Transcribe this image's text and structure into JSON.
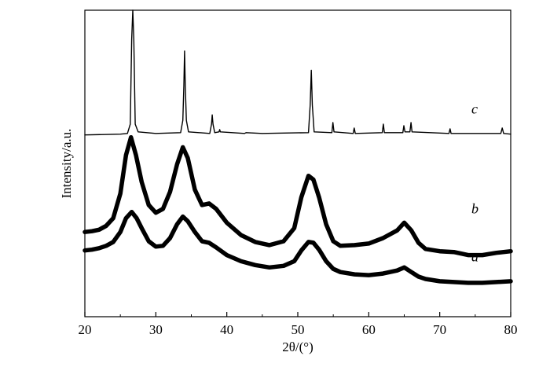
{
  "chart_data": {
    "type": "line",
    "title": "",
    "xlabel": "2θ/(°)",
    "ylabel": "Intensity/a.u.",
    "xlim": [
      20,
      80
    ],
    "xticks": [
      20,
      30,
      40,
      50,
      60,
      70,
      80
    ],
    "yticks_shown": false,
    "grid": false,
    "legend": "none",
    "series": [
      {
        "name": "a",
        "line_color": "#000000",
        "points": [
          [
            20,
            0.86
          ],
          [
            21,
            0.87
          ],
          [
            22,
            0.89
          ],
          [
            23,
            0.92
          ],
          [
            24,
            0.97
          ],
          [
            25,
            1.1
          ],
          [
            25.8,
            1.28
          ],
          [
            26.6,
            1.36
          ],
          [
            27.3,
            1.28
          ],
          [
            28,
            1.15
          ],
          [
            29,
            0.98
          ],
          [
            30,
            0.91
          ],
          [
            31,
            0.92
          ],
          [
            32,
            1.02
          ],
          [
            33,
            1.2
          ],
          [
            33.8,
            1.3
          ],
          [
            34.5,
            1.24
          ],
          [
            35.5,
            1.1
          ],
          [
            36.5,
            0.98
          ],
          [
            37.5,
            0.96
          ],
          [
            38.5,
            0.9
          ],
          [
            40,
            0.8
          ],
          [
            42,
            0.72
          ],
          [
            44,
            0.67
          ],
          [
            46,
            0.64
          ],
          [
            48,
            0.66
          ],
          [
            49.5,
            0.72
          ],
          [
            50.5,
            0.86
          ],
          [
            51.5,
            0.97
          ],
          [
            52.2,
            0.96
          ],
          [
            53,
            0.87
          ],
          [
            54,
            0.72
          ],
          [
            55,
            0.62
          ],
          [
            56,
            0.58
          ],
          [
            58,
            0.55
          ],
          [
            60,
            0.54
          ],
          [
            62,
            0.56
          ],
          [
            64,
            0.6
          ],
          [
            65,
            0.64
          ],
          [
            66,
            0.58
          ],
          [
            67,
            0.52
          ],
          [
            68,
            0.49
          ],
          [
            70,
            0.46
          ],
          [
            72,
            0.45
          ],
          [
            74,
            0.44
          ],
          [
            76,
            0.44
          ],
          [
            78,
            0.45
          ],
          [
            80,
            0.46
          ]
        ]
      },
      {
        "name": "b",
        "line_color": "#000000",
        "points": [
          [
            20,
            1.1
          ],
          [
            21,
            1.11
          ],
          [
            22,
            1.13
          ],
          [
            23,
            1.18
          ],
          [
            24,
            1.28
          ],
          [
            25,
            1.6
          ],
          [
            25.8,
            2.1
          ],
          [
            26.5,
            2.33
          ],
          [
            27.2,
            2.1
          ],
          [
            28,
            1.75
          ],
          [
            29,
            1.45
          ],
          [
            30,
            1.35
          ],
          [
            31,
            1.4
          ],
          [
            32,
            1.62
          ],
          [
            33,
            1.98
          ],
          [
            33.8,
            2.2
          ],
          [
            34.5,
            2.06
          ],
          [
            35.5,
            1.65
          ],
          [
            36.5,
            1.45
          ],
          [
            37.5,
            1.47
          ],
          [
            38.5,
            1.4
          ],
          [
            40,
            1.22
          ],
          [
            42,
            1.06
          ],
          [
            44,
            0.97
          ],
          [
            46,
            0.93
          ],
          [
            48,
            0.98
          ],
          [
            49.5,
            1.15
          ],
          [
            50.5,
            1.55
          ],
          [
            51.5,
            1.83
          ],
          [
            52.2,
            1.78
          ],
          [
            53,
            1.55
          ],
          [
            54,
            1.2
          ],
          [
            55,
            0.98
          ],
          [
            56,
            0.92
          ],
          [
            58,
            0.93
          ],
          [
            60,
            0.95
          ],
          [
            62,
            1.02
          ],
          [
            64,
            1.12
          ],
          [
            65,
            1.22
          ],
          [
            66,
            1.12
          ],
          [
            67,
            0.96
          ],
          [
            68,
            0.88
          ],
          [
            70,
            0.85
          ],
          [
            72,
            0.84
          ],
          [
            74,
            0.8
          ],
          [
            76,
            0.8
          ],
          [
            78,
            0.83
          ],
          [
            80,
            0.85
          ]
        ]
      },
      {
        "name": "c",
        "line_color": "#000000",
        "points": [
          [
            20,
            2.36
          ],
          [
            25,
            2.37
          ],
          [
            26.0,
            2.38
          ],
          [
            26.4,
            2.5
          ],
          [
            26.6,
            3.6
          ],
          [
            26.75,
            3.98
          ],
          [
            26.9,
            3.6
          ],
          [
            27.1,
            2.5
          ],
          [
            27.5,
            2.4
          ],
          [
            30,
            2.38
          ],
          [
            33.5,
            2.39
          ],
          [
            33.8,
            2.55
          ],
          [
            33.95,
            3.0
          ],
          [
            34.05,
            3.45
          ],
          [
            34.15,
            3.0
          ],
          [
            34.3,
            2.55
          ],
          [
            34.6,
            2.4
          ],
          [
            37.6,
            2.38
          ],
          [
            37.85,
            2.5
          ],
          [
            37.95,
            2.62
          ],
          [
            38.05,
            2.5
          ],
          [
            38.3,
            2.39
          ],
          [
            38.9,
            2.4
          ],
          [
            39.0,
            2.43
          ],
          [
            39.1,
            2.4
          ],
          [
            42.5,
            2.38
          ],
          [
            42.7,
            2.39
          ],
          [
            45,
            2.38
          ],
          [
            51.5,
            2.39
          ],
          [
            51.75,
            2.75
          ],
          [
            51.9,
            3.2
          ],
          [
            52.05,
            2.75
          ],
          [
            52.3,
            2.4
          ],
          [
            54.8,
            2.39
          ],
          [
            54.95,
            2.52
          ],
          [
            55.1,
            2.4
          ],
          [
            57.8,
            2.38
          ],
          [
            57.95,
            2.45
          ],
          [
            58.1,
            2.38
          ],
          [
            61.9,
            2.39
          ],
          [
            62.05,
            2.5
          ],
          [
            62.2,
            2.39
          ],
          [
            64.8,
            2.39
          ],
          [
            64.95,
            2.48
          ],
          [
            65.1,
            2.4
          ],
          [
            65.8,
            2.4
          ],
          [
            65.95,
            2.52
          ],
          [
            66.1,
            2.4
          ],
          [
            71.3,
            2.38
          ],
          [
            71.45,
            2.44
          ],
          [
            71.6,
            2.38
          ],
          [
            78.6,
            2.38
          ],
          [
            78.8,
            2.45
          ],
          [
            79.0,
            2.38
          ],
          [
            80,
            2.37
          ]
        ]
      }
    ]
  }
}
